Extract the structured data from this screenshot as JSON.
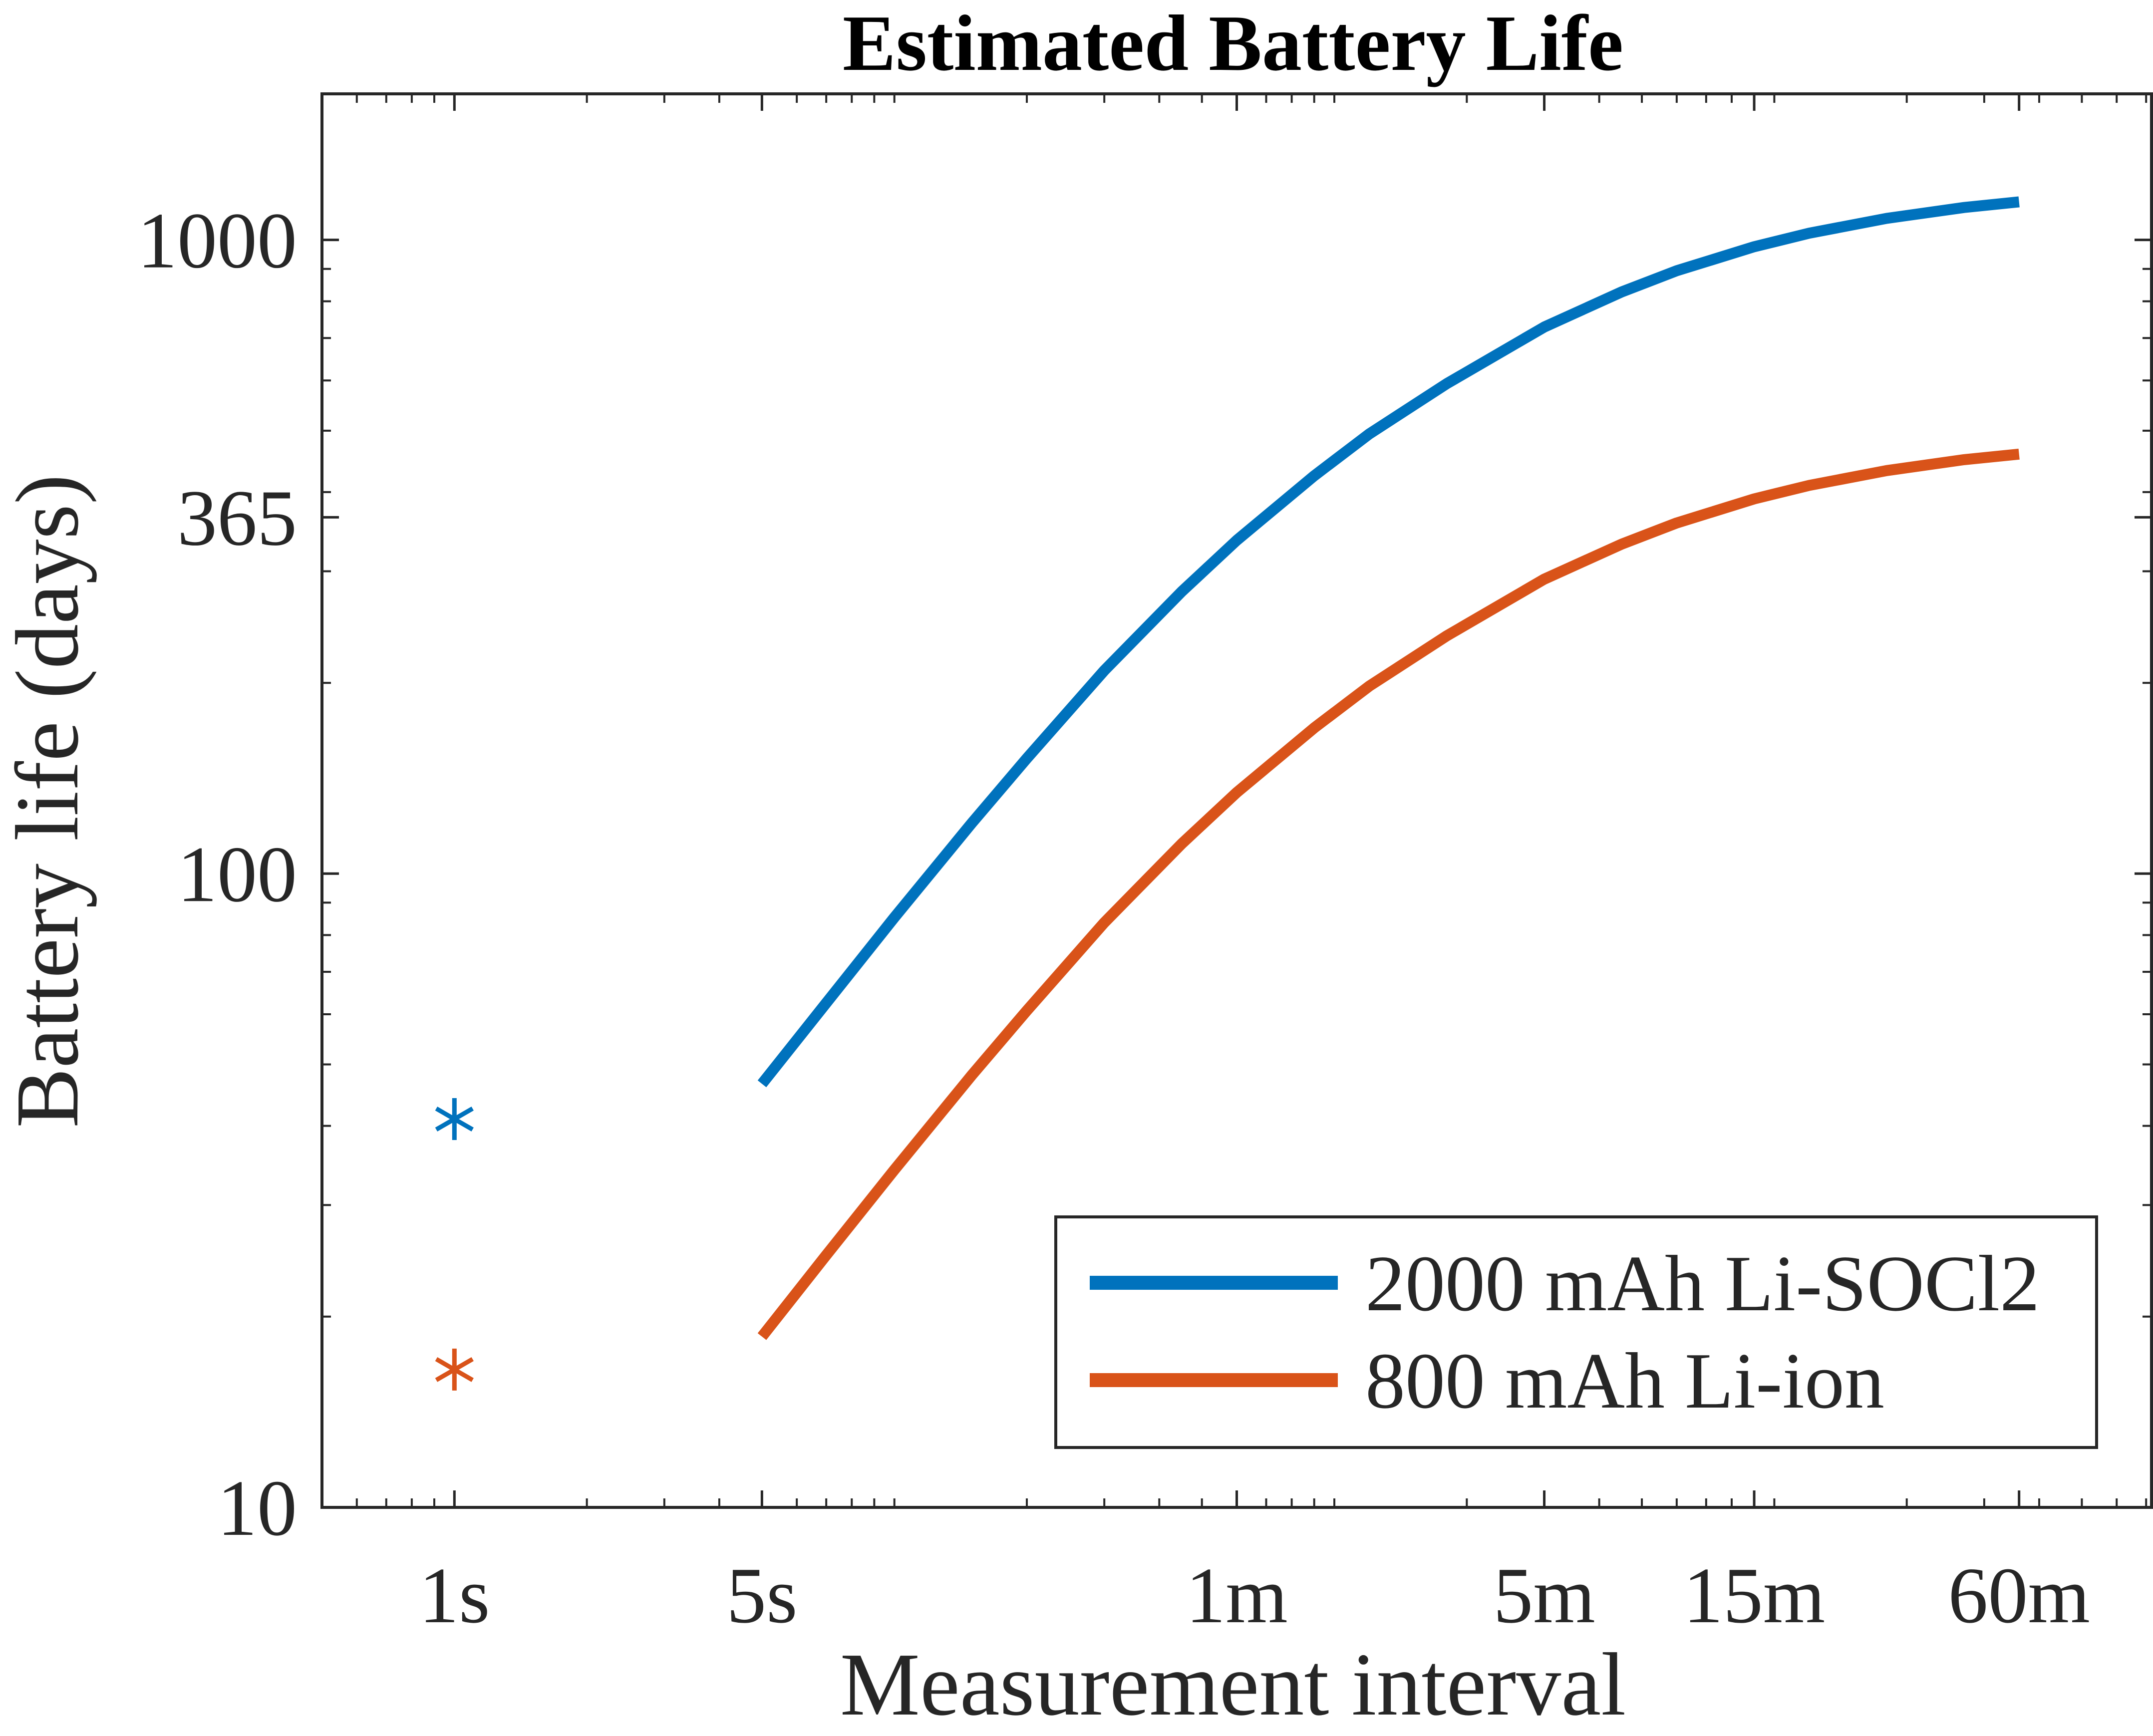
{
  "chart_data": {
    "type": "line",
    "title": "Estimated Battery Life",
    "xlabel": "Measurement interval",
    "ylabel": "Battery life (days)",
    "x_scale": "log",
    "y_scale": "log",
    "x_unit": "seconds",
    "xlim": [
      0.5,
      7200
    ],
    "ylim": [
      10,
      1700
    ],
    "x_ticks": [
      {
        "value": 1,
        "label": "1s"
      },
      {
        "value": 5,
        "label": "5s"
      },
      {
        "value": 60,
        "label": "1m"
      },
      {
        "value": 300,
        "label": "5m"
      },
      {
        "value": 900,
        "label": "15m"
      },
      {
        "value": 3600,
        "label": "60m"
      }
    ],
    "y_ticks": [
      {
        "value": 10,
        "label": "10"
      },
      {
        "value": 100,
        "label": "100"
      },
      {
        "value": 365,
        "label": "365"
      },
      {
        "value": 1000,
        "label": "1000"
      }
    ],
    "series": [
      {
        "name": "2000 mAh Li-SOCl2",
        "color": "#0072BD",
        "x": [
          5,
          7,
          10,
          15,
          20,
          30,
          45,
          60,
          90,
          120,
          180,
          300,
          450,
          600,
          900,
          1200,
          1800,
          2700,
          3600
        ],
        "y": [
          46.6,
          62.5,
          85.3,
          120.2,
          152.0,
          209.2,
          278.7,
          335.7,
          424.4,
          494.0,
          593.0,
          728.6,
          827.8,
          893.9,
          975.4,
          1024.6,
          1081.3,
          1125.0,
          1148.1
        ]
      },
      {
        "name": "800 mAh Li-ion",
        "color": "#D95319",
        "x": [
          5,
          7,
          10,
          15,
          20,
          30,
          45,
          60,
          90,
          120,
          180,
          300,
          450,
          600,
          900,
          1200,
          1800,
          2700,
          3600
        ],
        "y": [
          18.6,
          25.0,
          34.1,
          48.1,
          60.8,
          83.7,
          111.5,
          134.3,
          169.8,
          197.6,
          237.2,
          291.5,
          331.1,
          357.6,
          390.2,
          409.8,
          432.5,
          450.0,
          459.2
        ]
      }
    ],
    "points": [
      {
        "series": "2000 mAh Li-SOCl2",
        "x": 1,
        "y": 41,
        "marker": "asterisk",
        "color": "#0072BD"
      },
      {
        "series": "800 mAh Li-ion",
        "x": 1,
        "y": 16.5,
        "marker": "asterisk",
        "color": "#D95319"
      }
    ],
    "legend": {
      "position": "bottom-right",
      "entries": [
        "2000 mAh Li-SOCl2",
        "800 mAh Li-ion"
      ]
    },
    "grid": false,
    "box": true
  }
}
